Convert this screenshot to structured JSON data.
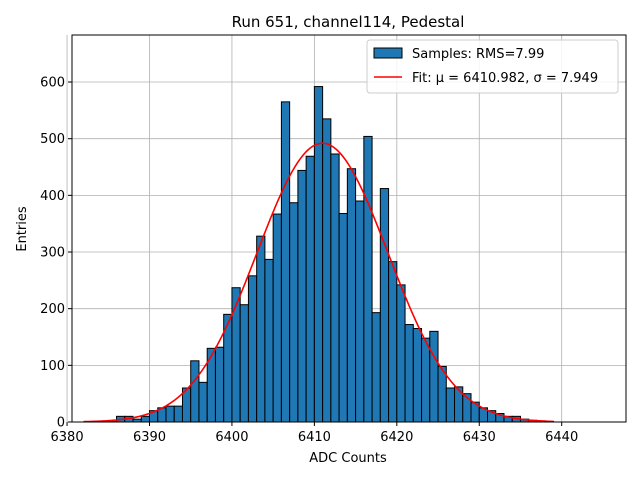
{
  "chart_data": {
    "type": "bar",
    "title": "Run 651, channel114, Pedestal",
    "xlabel": "ADC Counts",
    "ylabel": "Entries",
    "xlim": [
      6380.6,
      6447.8
    ],
    "ylim": [
      0,
      683
    ],
    "xticks": [
      6380,
      6390,
      6400,
      6410,
      6420,
      6430,
      6440
    ],
    "yticks": [
      0,
      100,
      200,
      300,
      400,
      500,
      600
    ],
    "grid": true,
    "legend_position": "top-right",
    "histogram": {
      "name": "Samples: RMS=7.99",
      "bin_width": 1,
      "bin_starts": [
        6382,
        6383,
        6384,
        6385,
        6386,
        6387,
        6388,
        6389,
        6390,
        6391,
        6392,
        6393,
        6394,
        6395,
        6396,
        6397,
        6398,
        6399,
        6400,
        6401,
        6402,
        6403,
        6404,
        6405,
        6406,
        6407,
        6408,
        6409,
        6410,
        6411,
        6412,
        6413,
        6414,
        6415,
        6416,
        6417,
        6418,
        6419,
        6420,
        6421,
        6422,
        6423,
        6424,
        6425,
        6426,
        6427,
        6428,
        6429,
        6430,
        6431,
        6432,
        6433,
        6434,
        6435,
        6436,
        6437,
        6438
      ],
      "counts": [
        0,
        1,
        1,
        1,
        10,
        10,
        5,
        10,
        20,
        25,
        28,
        28,
        60,
        108,
        70,
        130,
        132,
        190,
        237,
        207,
        258,
        328,
        287,
        367,
        565,
        387,
        444,
        469,
        592,
        535,
        473,
        368,
        447,
        390,
        504,
        193,
        412,
        283,
        242,
        172,
        165,
        148,
        160,
        98,
        60,
        62,
        50,
        35,
        25,
        20,
        15,
        10,
        10,
        5,
        3,
        2,
        1
      ],
      "color": "#1f77b4",
      "edgecolor": "#000000"
    },
    "fit": {
      "name": "Fit: μ = 6410.982, σ = 7.949",
      "mu": 6410.982,
      "sigma": 7.949,
      "amplitude": 492,
      "x_range": [
        6382,
        6439
      ],
      "color": "#ff0000"
    }
  }
}
